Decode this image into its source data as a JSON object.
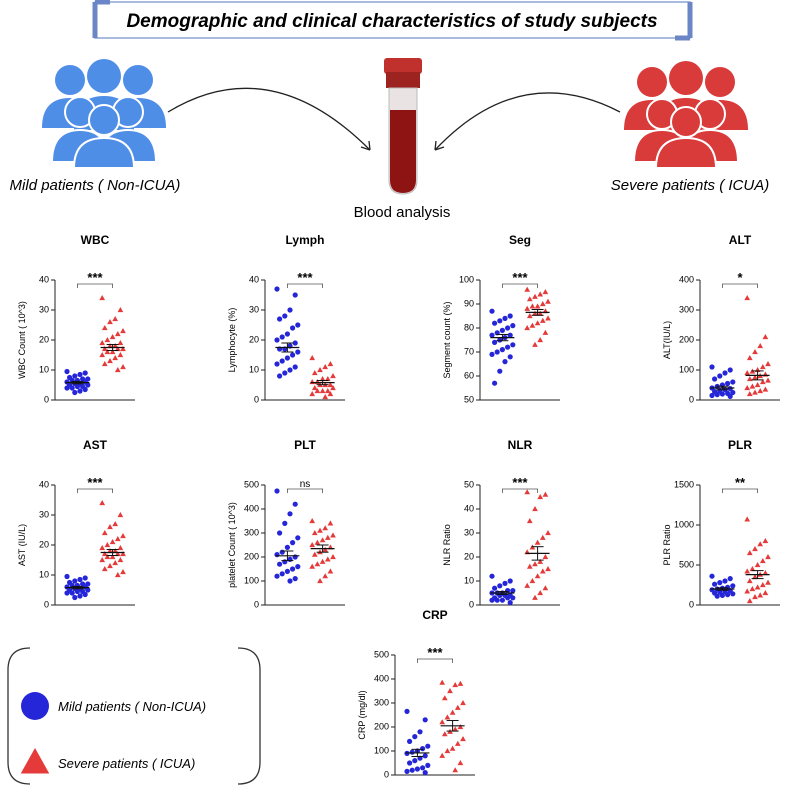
{
  "header": {
    "title": "Demographic and clinical characteristics of study subjects",
    "center_label": "Blood analysis"
  },
  "legend": {
    "series": [
      {
        "name": "Mild patients ( Non-ICUA)",
        "color": "#2626d9",
        "marker": "circle"
      },
      {
        "name": "Severe patients ( ICUA)",
        "color": "#e53a3a",
        "marker": "triangle"
      }
    ]
  },
  "chart_data": [
    {
      "type": "scatter",
      "title": "WBC",
      "y_label": "WBC Count ( 10^3)",
      "ylim": [
        0,
        40
      ],
      "yticks": [
        0,
        10,
        20,
        30,
        40
      ],
      "significance": "***",
      "series": [
        {
          "values": [
            9.5,
            9,
            8.5,
            8,
            7.5,
            7,
            7,
            6.5,
            6.5,
            6,
            6,
            5.5,
            5.5,
            5,
            5,
            4.5,
            4.5,
            4,
            4,
            3.5,
            3,
            2.5
          ],
          "mean": 5.8,
          "sem": 0.4
        },
        {
          "values": [
            34,
            30,
            27,
            26,
            24,
            23,
            22,
            21,
            20,
            19,
            19,
            18,
            18,
            17,
            17,
            17,
            16,
            16,
            15,
            15,
            14,
            13,
            12,
            11,
            10
          ],
          "mean": 17.5,
          "sem": 1
        }
      ]
    },
    {
      "type": "scatter",
      "title": "Lymph",
      "y_label": "Lymphocyte (%)",
      "ylim": [
        0,
        40
      ],
      "yticks": [
        0,
        10,
        20,
        30,
        40
      ],
      "significance": "***",
      "series": [
        {
          "values": [
            37,
            35,
            30,
            28,
            27,
            25,
            24,
            22,
            21,
            20,
            19,
            18,
            17,
            17,
            16,
            15,
            14,
            13,
            12,
            11,
            10,
            9,
            8
          ],
          "mean": 17.5,
          "sem": 1.5
        },
        {
          "values": [
            14,
            12,
            11,
            10,
            9,
            8,
            7,
            7,
            6,
            6,
            5,
            5,
            5,
            4,
            4,
            3,
            3,
            3,
            2,
            2,
            1
          ],
          "mean": 5.8,
          "sem": 0.7
        }
      ]
    },
    {
      "type": "scatter",
      "title": "Seg",
      "y_label": "Segment count (%)",
      "ylim": [
        50,
        100
      ],
      "yticks": [
        50,
        60,
        70,
        80,
        90,
        100
      ],
      "significance": "***",
      "series": [
        {
          "values": [
            87,
            85,
            84,
            83,
            82,
            81,
            80,
            79,
            78,
            77,
            77,
            76,
            75,
            74,
            73,
            72,
            71,
            70,
            69,
            68,
            66,
            62,
            57
          ],
          "mean": 76,
          "sem": 1.3
        },
        {
          "values": [
            96,
            95,
            94,
            93,
            92,
            91,
            90,
            89,
            89,
            88,
            87,
            86,
            86,
            85,
            84,
            83,
            82,
            81,
            80,
            78,
            75,
            73
          ],
          "mean": 86.5,
          "sem": 1.2
        }
      ]
    },
    {
      "type": "scatter",
      "title": "ALT",
      "y_label": "ALT(IU/L)",
      "ylim": [
        0,
        400
      ],
      "yticks": [
        0,
        100,
        200,
        300,
        400
      ],
      "significance": "*",
      "series": [
        {
          "values": [
            110,
            100,
            90,
            80,
            70,
            60,
            55,
            50,
            45,
            40,
            38,
            35,
            30,
            28,
            25,
            22,
            20,
            18,
            15,
            12
          ],
          "mean": 40,
          "sem": 6
        },
        {
          "values": [
            340,
            210,
            180,
            160,
            140,
            120,
            110,
            100,
            95,
            90,
            85,
            80,
            75,
            70,
            65,
            60,
            50,
            45,
            40,
            35,
            30,
            25,
            20
          ],
          "mean": 82,
          "sem": 15
        }
      ]
    },
    {
      "type": "scatter",
      "title": "AST",
      "y_label": "AST (IU/L)",
      "ylim": [
        0,
        40
      ],
      "yticks": [
        0,
        10,
        20,
        30,
        40
      ],
      "significance": "***",
      "series": [
        {
          "values": [
            9.5,
            9,
            8.5,
            8,
            7.5,
            7,
            7,
            6.5,
            6.5,
            6,
            6,
            5.5,
            5.5,
            5,
            5,
            4.5,
            4.5,
            4,
            4,
            3.5,
            3,
            2.5
          ],
          "mean": 5.8,
          "sem": 0.4
        },
        {
          "values": [
            34,
            30,
            27,
            26,
            24,
            23,
            22,
            21,
            20,
            19,
            19,
            18,
            18,
            17,
            17,
            17,
            16,
            16,
            15,
            15,
            14,
            13,
            12,
            11,
            10
          ],
          "mean": 17.5,
          "sem": 1
        }
      ]
    },
    {
      "type": "scatter",
      "title": "PLT",
      "y_label": "platelet  Count ( 10^3)",
      "ylim": [
        0,
        500
      ],
      "yticks": [
        0,
        100,
        200,
        300,
        400,
        500
      ],
      "significance": "ns",
      "series": [
        {
          "values": [
            475,
            420,
            380,
            340,
            300,
            280,
            260,
            240,
            220,
            210,
            200,
            190,
            180,
            170,
            160,
            150,
            140,
            130,
            120,
            110,
            100
          ],
          "mean": 205,
          "sem": 20
        },
        {
          "values": [
            350,
            340,
            320,
            310,
            300,
            290,
            280,
            270,
            260,
            250,
            240,
            230,
            220,
            210,
            200,
            190,
            180,
            170,
            160,
            140,
            120,
            100
          ],
          "mean": 235,
          "sem": 15
        }
      ]
    },
    {
      "type": "scatter",
      "title": "NLR",
      "y_label": "NLR Ratio",
      "ylim": [
        0,
        50
      ],
      "yticks": [
        0,
        10,
        20,
        30,
        40,
        50
      ],
      "significance": "***",
      "series": [
        {
          "values": [
            12,
            10,
            9,
            8,
            7,
            6,
            6,
            5,
            5,
            5,
            4,
            4,
            4,
            3,
            3,
            3,
            2,
            2,
            2,
            1
          ],
          "mean": 5,
          "sem": 0.6
        },
        {
          "values": [
            47,
            46,
            45,
            40,
            35,
            30,
            28,
            26,
            24,
            22,
            20,
            18,
            17,
            16,
            15,
            14,
            12,
            10,
            8,
            7,
            5,
            3
          ],
          "mean": 21.5,
          "sem": 2.8
        }
      ]
    },
    {
      "type": "scatter",
      "title": "PLR",
      "y_label": "PLR Ratio",
      "ylim": [
        0,
        1500
      ],
      "yticks": [
        0,
        500,
        1000,
        1500
      ],
      "significance": "**",
      "series": [
        {
          "values": [
            360,
            330,
            300,
            280,
            260,
            240,
            220,
            210,
            200,
            190,
            180,
            170,
            160,
            150,
            140,
            130,
            120,
            110
          ],
          "mean": 200,
          "sem": 15
        },
        {
          "values": [
            1070,
            800,
            760,
            700,
            650,
            600,
            550,
            500,
            450,
            420,
            400,
            380,
            350,
            300,
            280,
            250,
            220,
            200,
            170,
            150,
            120,
            100,
            50
          ],
          "mean": 380,
          "sem": 50
        }
      ]
    },
    {
      "type": "scatter",
      "title": "CRP",
      "y_label": "CRP (mg/dl)",
      "ylim": [
        0,
        500
      ],
      "yticks": [
        0,
        100,
        200,
        300,
        400,
        500
      ],
      "significance": "***",
      "series": [
        {
          "values": [
            265,
            230,
            180,
            160,
            140,
            120,
            110,
            100,
            95,
            90,
            80,
            70,
            60,
            50,
            40,
            30,
            25,
            20,
            15,
            10
          ],
          "mean": 92,
          "sem": 15
        },
        {
          "values": [
            385,
            380,
            375,
            350,
            320,
            300,
            280,
            260,
            240,
            220,
            200,
            190,
            180,
            170,
            150,
            130,
            110,
            100,
            80,
            50,
            20
          ],
          "mean": 205,
          "sem": 22
        }
      ]
    }
  ]
}
